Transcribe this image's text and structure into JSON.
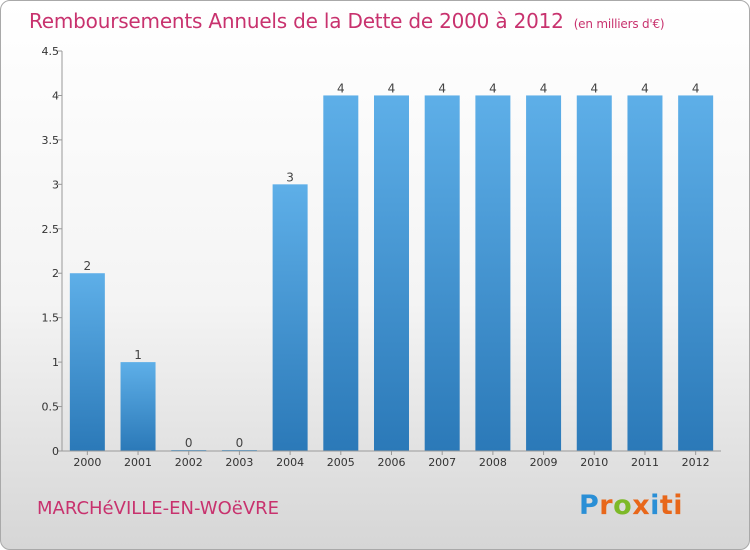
{
  "header": {
    "title": "Remboursements Annuels de la Dette de 2000 à 2012",
    "unit": "(en milliers d'€)"
  },
  "footer": {
    "commune": "MARCHéVILLE-EN-WOëVRE",
    "logo_letters": [
      "P",
      "r",
      "o",
      "x",
      "i",
      "ti"
    ]
  },
  "colors": {
    "title": "#c8326e",
    "bar_top": "#5eafe8",
    "bar_bottom": "#2b79b8",
    "axis": "#999999"
  },
  "chart_data": {
    "type": "bar",
    "categories": [
      "2000",
      "2001",
      "2002",
      "2003",
      "2004",
      "2005",
      "2006",
      "2007",
      "2008",
      "2009",
      "2010",
      "2011",
      "2012"
    ],
    "values": [
      2,
      1,
      0,
      0,
      3,
      4,
      4,
      4,
      4,
      4,
      4,
      4,
      4
    ],
    "data_labels": [
      "2",
      "1",
      "0",
      "0",
      "3",
      "4",
      "4",
      "4",
      "4",
      "4",
      "4",
      "4",
      "4"
    ],
    "ylim": [
      0,
      4.5
    ],
    "yticks": [
      0,
      0.5,
      1,
      1.5,
      2,
      2.5,
      3,
      3.5,
      4,
      4.5
    ],
    "ytick_labels": [
      "0",
      "0.5",
      "1",
      "1.5",
      "2",
      "2.5",
      "3",
      "3.5",
      "4",
      "4.5"
    ],
    "grid": false,
    "legend": "none"
  }
}
